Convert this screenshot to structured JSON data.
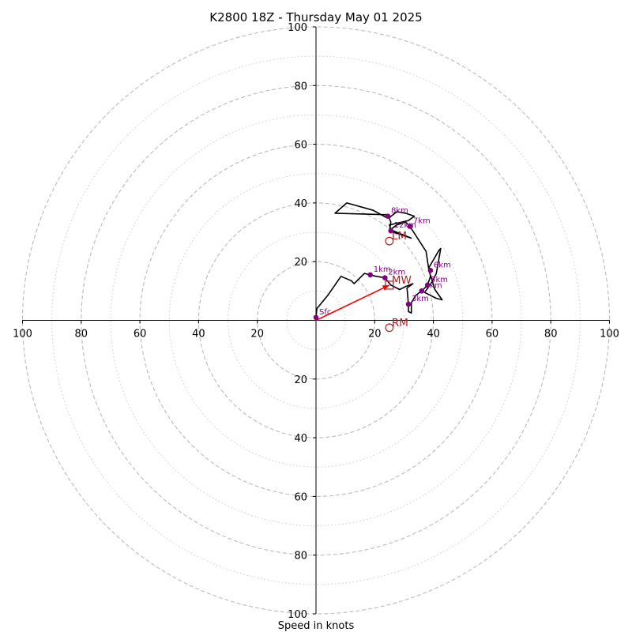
{
  "chart_data": {
    "type": "hodograph",
    "title": "K2800 18Z - Thursday May 01 2025",
    "xlabel": "Speed in knots",
    "range": [
      -100,
      100
    ],
    "major_rings": [
      20,
      40,
      60,
      80,
      100
    ],
    "minor_rings": [
      10,
      30,
      50,
      70,
      90
    ],
    "x_ticks": [
      {
        "v": -100,
        "label": "100"
      },
      {
        "v": -80,
        "label": "80"
      },
      {
        "v": -60,
        "label": "60"
      },
      {
        "v": -40,
        "label": "40"
      },
      {
        "v": -20,
        "label": "20"
      },
      {
        "v": 20,
        "label": "20"
      },
      {
        "v": 40,
        "label": "40"
      },
      {
        "v": 60,
        "label": "60"
      },
      {
        "v": 80,
        "label": "80"
      },
      {
        "v": 100,
        "label": "100"
      }
    ],
    "y_ticks": [
      {
        "v": 100,
        "label": "100"
      },
      {
        "v": 80,
        "label": "80"
      },
      {
        "v": 60,
        "label": "60"
      },
      {
        "v": 40,
        "label": "40"
      },
      {
        "v": 20,
        "label": "20"
      },
      {
        "v": -20,
        "label": "20"
      },
      {
        "v": -40,
        "label": "40"
      },
      {
        "v": -60,
        "label": "60"
      },
      {
        "v": -80,
        "label": "80"
      },
      {
        "v": -100,
        "label": "100"
      }
    ],
    "trace": [
      [
        0,
        1
      ],
      [
        0.3,
        4
      ],
      [
        4,
        8.5
      ],
      [
        8.5,
        15
      ],
      [
        12,
        13.5
      ],
      [
        13,
        12.5
      ],
      [
        16.5,
        16
      ],
      [
        18.5,
        15.5
      ],
      [
        20.5,
        15
      ],
      [
        23.5,
        14.5
      ],
      [
        25.5,
        12
      ],
      [
        28.5,
        10.5
      ],
      [
        30.5,
        11.5
      ],
      [
        33,
        12.5
      ],
      [
        31,
        11
      ],
      [
        31.5,
        5.5
      ],
      [
        31.5,
        3
      ],
      [
        32.5,
        2.5
      ],
      [
        32.5,
        6
      ],
      [
        34,
        8.5
      ],
      [
        36,
        10
      ],
      [
        38,
        12
      ],
      [
        39,
        15
      ],
      [
        38.5,
        18
      ],
      [
        42,
        24
      ],
      [
        42.5,
        24.5
      ],
      [
        41,
        16
      ],
      [
        39.5,
        13
      ],
      [
        37,
        9.5
      ],
      [
        41,
        7.5
      ],
      [
        43,
        7
      ],
      [
        40.5,
        10.5
      ],
      [
        38.5,
        17
      ],
      [
        37.5,
        23.5
      ],
      [
        32,
        32
      ],
      [
        30.5,
        33.5
      ],
      [
        27.5,
        32.5
      ],
      [
        25.5,
        31
      ],
      [
        25,
        32.5
      ],
      [
        31.5,
        34
      ],
      [
        33.5,
        35.5
      ],
      [
        30.5,
        36.5
      ],
      [
        27.5,
        37
      ],
      [
        25,
        35
      ],
      [
        24.5,
        36
      ],
      [
        6.5,
        36.5
      ],
      [
        10.5,
        40
      ],
      [
        19.5,
        37.5
      ],
      [
        24,
        35
      ],
      [
        24.5,
        36
      ],
      [
        25.5,
        33.5
      ],
      [
        25,
        30.5
      ],
      [
        32.5,
        28
      ],
      [
        25,
        31
      ]
    ],
    "heights": [
      {
        "label": "Sfc",
        "x": 0,
        "y": 1
      },
      {
        "label": "1km",
        "x": 18.5,
        "y": 15.5
      },
      {
        "label": "2km",
        "x": 23.5,
        "y": 14.5
      },
      {
        "label": "3km",
        "x": 31.5,
        "y": 5.5
      },
      {
        "label": "4km",
        "x": 36,
        "y": 10
      },
      {
        "label": "5km",
        "x": 38,
        "y": 12
      },
      {
        "label": "6km",
        "x": 39,
        "y": 17
      },
      {
        "label": "7km",
        "x": 32,
        "y": 32
      },
      {
        "label": "8km",
        "x": 24.5,
        "y": 35.5
      },
      {
        "label": "12km",
        "x": 25.5,
        "y": 30.5
      }
    ],
    "storm_motion": [
      {
        "label": "LM",
        "x": 25,
        "y": 27
      },
      {
        "label": "MW",
        "x": 25,
        "y": 12
      },
      {
        "label": "RM",
        "x": 25,
        "y": -2.5
      }
    ],
    "shear_vector": {
      "from": [
        0,
        0
      ],
      "to": [
        25,
        12
      ]
    },
    "colors": {
      "trace": "#000000",
      "heights": "#800080",
      "storm_motion": "#b22222",
      "shear_vector": "#ff0000",
      "rings": "#bbbbbb"
    }
  }
}
